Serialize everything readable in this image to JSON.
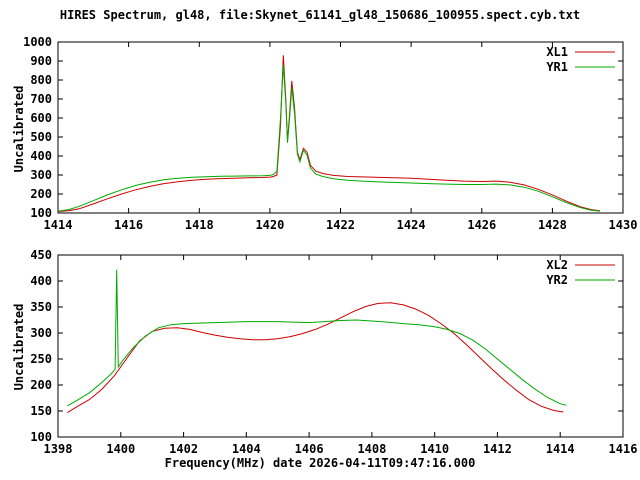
{
  "title": "HIRES Spectrum, gl48, file:Skynet_61141_gl48_150686_100955.spect.cyb.txt",
  "xlabel": "Frequency(MHz) date 2026-04-11T09:47:16.000",
  "colors": {
    "red": "#cc0000",
    "green": "#00aa00",
    "axis": "#000000",
    "background": "#ffffff"
  },
  "chart_data": [
    {
      "type": "line",
      "ylabel": "Uncalibrated",
      "xlim": [
        1414,
        1430
      ],
      "ylim": [
        100,
        1000
      ],
      "xticks": [
        1414,
        1416,
        1418,
        1420,
        1422,
        1424,
        1426,
        1428,
        1430
      ],
      "yticks": [
        100,
        200,
        300,
        400,
        500,
        600,
        700,
        800,
        900,
        1000
      ],
      "legend_position": "top-right",
      "grid": false,
      "series": [
        {
          "name": "XL1",
          "color": "#cc0000",
          "points": [
            [
              1414.0,
              108
            ],
            [
              1414.3,
              112
            ],
            [
              1414.6,
              122
            ],
            [
              1415.0,
              148
            ],
            [
              1415.4,
              175
            ],
            [
              1415.8,
              200
            ],
            [
              1416.2,
              222
            ],
            [
              1416.6,
              240
            ],
            [
              1417.0,
              255
            ],
            [
              1417.4,
              265
            ],
            [
              1417.8,
              272
            ],
            [
              1418.2,
              278
            ],
            [
              1418.6,
              281
            ],
            [
              1419.0,
              283
            ],
            [
              1419.4,
              285
            ],
            [
              1419.8,
              287
            ],
            [
              1420.0,
              289
            ],
            [
              1420.1,
              292
            ],
            [
              1420.2,
              300
            ],
            [
              1420.3,
              560
            ],
            [
              1420.38,
              930
            ],
            [
              1420.45,
              700
            ],
            [
              1420.5,
              480
            ],
            [
              1420.55,
              600
            ],
            [
              1420.62,
              795
            ],
            [
              1420.7,
              650
            ],
            [
              1420.78,
              420
            ],
            [
              1420.85,
              380
            ],
            [
              1420.95,
              440
            ],
            [
              1421.05,
              420
            ],
            [
              1421.15,
              350
            ],
            [
              1421.3,
              320
            ],
            [
              1421.5,
              308
            ],
            [
              1421.8,
              298
            ],
            [
              1422.2,
              292
            ],
            [
              1422.6,
              290
            ],
            [
              1423.0,
              288
            ],
            [
              1423.5,
              286
            ],
            [
              1424.0,
              283
            ],
            [
              1424.5,
              278
            ],
            [
              1425.0,
              272
            ],
            [
              1425.5,
              268
            ],
            [
              1426.0,
              266
            ],
            [
              1426.4,
              268
            ],
            [
              1426.8,
              262
            ],
            [
              1427.2,
              248
            ],
            [
              1427.6,
              225
            ],
            [
              1428.0,
              195
            ],
            [
              1428.4,
              162
            ],
            [
              1428.8,
              132
            ],
            [
              1429.1,
              118
            ],
            [
              1429.35,
              112
            ]
          ]
        },
        {
          "name": "YR1",
          "color": "#00aa00",
          "points": [
            [
              1414.0,
              110
            ],
            [
              1414.3,
              118
            ],
            [
              1414.6,
              135
            ],
            [
              1415.0,
              165
            ],
            [
              1415.4,
              195
            ],
            [
              1415.8,
              222
            ],
            [
              1416.2,
              245
            ],
            [
              1416.6,
              262
            ],
            [
              1417.0,
              275
            ],
            [
              1417.4,
              283
            ],
            [
              1417.8,
              288
            ],
            [
              1418.2,
              291
            ],
            [
              1418.6,
              293
            ],
            [
              1419.0,
              294
            ],
            [
              1419.4,
              295
            ],
            [
              1419.8,
              296
            ],
            [
              1420.0,
              298
            ],
            [
              1420.1,
              302
            ],
            [
              1420.2,
              320
            ],
            [
              1420.3,
              600
            ],
            [
              1420.38,
              880
            ],
            [
              1420.45,
              680
            ],
            [
              1420.5,
              470
            ],
            [
              1420.55,
              580
            ],
            [
              1420.62,
              760
            ],
            [
              1420.7,
              620
            ],
            [
              1420.78,
              410
            ],
            [
              1420.85,
              370
            ],
            [
              1420.95,
              430
            ],
            [
              1421.05,
              405
            ],
            [
              1421.15,
              335
            ],
            [
              1421.3,
              305
            ],
            [
              1421.5,
              292
            ],
            [
              1421.8,
              280
            ],
            [
              1422.2,
              272
            ],
            [
              1422.6,
              268
            ],
            [
              1423.0,
              264
            ],
            [
              1423.5,
              261
            ],
            [
              1424.0,
              258
            ],
            [
              1424.5,
              255
            ],
            [
              1425.0,
              252
            ],
            [
              1425.5,
              250
            ],
            [
              1426.0,
              250
            ],
            [
              1426.4,
              252
            ],
            [
              1426.8,
              248
            ],
            [
              1427.2,
              236
            ],
            [
              1427.6,
              215
            ],
            [
              1428.0,
              185
            ],
            [
              1428.4,
              155
            ],
            [
              1428.8,
              128
            ],
            [
              1429.1,
              115
            ],
            [
              1429.35,
              110
            ]
          ]
        }
      ]
    },
    {
      "type": "line",
      "ylabel": "Uncalibrated",
      "xlim": [
        1398,
        1416
      ],
      "ylim": [
        100,
        450
      ],
      "xticks": [
        1398,
        1400,
        1402,
        1404,
        1406,
        1408,
        1410,
        1412,
        1414,
        1416
      ],
      "yticks": [
        100,
        150,
        200,
        250,
        300,
        350,
        400,
        450
      ],
      "legend_position": "top-right",
      "grid": false,
      "series": [
        {
          "name": "XL2",
          "color": "#cc0000",
          "points": [
            [
              1398.3,
              147
            ],
            [
              1398.6,
              158
            ],
            [
              1399.0,
              172
            ],
            [
              1399.4,
              192
            ],
            [
              1399.8,
              218
            ],
            [
              1400.2,
              252
            ],
            [
              1400.6,
              285
            ],
            [
              1401.0,
              303
            ],
            [
              1401.4,
              309
            ],
            [
              1401.8,
              310
            ],
            [
              1402.2,
              307
            ],
            [
              1402.6,
              301
            ],
            [
              1403.0,
              296
            ],
            [
              1403.4,
              292
            ],
            [
              1403.8,
              289
            ],
            [
              1404.2,
              287
            ],
            [
              1404.6,
              287
            ],
            [
              1405.0,
              289
            ],
            [
              1405.4,
              293
            ],
            [
              1405.8,
              299
            ],
            [
              1406.2,
              307
            ],
            [
              1406.6,
              317
            ],
            [
              1407.0,
              329
            ],
            [
              1407.4,
              341
            ],
            [
              1407.8,
              351
            ],
            [
              1408.2,
              357
            ],
            [
              1408.6,
              358
            ],
            [
              1409.0,
              354
            ],
            [
              1409.4,
              346
            ],
            [
              1409.8,
              334
            ],
            [
              1410.2,
              318
            ],
            [
              1410.6,
              300
            ],
            [
              1411.0,
              278
            ],
            [
              1411.4,
              255
            ],
            [
              1411.8,
              232
            ],
            [
              1412.2,
              210
            ],
            [
              1412.6,
              190
            ],
            [
              1413.0,
              172
            ],
            [
              1413.4,
              159
            ],
            [
              1413.8,
              151
            ],
            [
              1414.1,
              148
            ]
          ]
        },
        {
          "name": "YR2",
          "color": "#00aa00",
          "points": [
            [
              1398.3,
              160
            ],
            [
              1398.6,
              170
            ],
            [
              1399.0,
              185
            ],
            [
              1399.4,
              205
            ],
            [
              1399.7,
              222
            ],
            [
              1399.82,
              230
            ],
            [
              1399.87,
              422
            ],
            [
              1399.92,
              235
            ],
            [
              1400.1,
              250
            ],
            [
              1400.4,
              272
            ],
            [
              1400.8,
              295
            ],
            [
              1401.2,
              310
            ],
            [
              1401.6,
              316
            ],
            [
              1402.0,
              318
            ],
            [
              1402.5,
              319
            ],
            [
              1403.0,
              320
            ],
            [
              1403.5,
              321
            ],
            [
              1404.0,
              322
            ],
            [
              1404.5,
              322
            ],
            [
              1405.0,
              322
            ],
            [
              1405.5,
              321
            ],
            [
              1406.0,
              320
            ],
            [
              1406.5,
              322
            ],
            [
              1407.0,
              324
            ],
            [
              1407.5,
              325
            ],
            [
              1408.0,
              323
            ],
            [
              1408.5,
              321
            ],
            [
              1409.0,
              318
            ],
            [
              1409.5,
              316
            ],
            [
              1410.0,
              312
            ],
            [
              1410.4,
              307
            ],
            [
              1410.8,
              299
            ],
            [
              1411.2,
              287
            ],
            [
              1411.6,
              270
            ],
            [
              1412.0,
              250
            ],
            [
              1412.4,
              230
            ],
            [
              1412.8,
              210
            ],
            [
              1413.2,
              192
            ],
            [
              1413.6,
              176
            ],
            [
              1414.0,
              164
            ],
            [
              1414.2,
              161
            ]
          ]
        }
      ]
    }
  ]
}
